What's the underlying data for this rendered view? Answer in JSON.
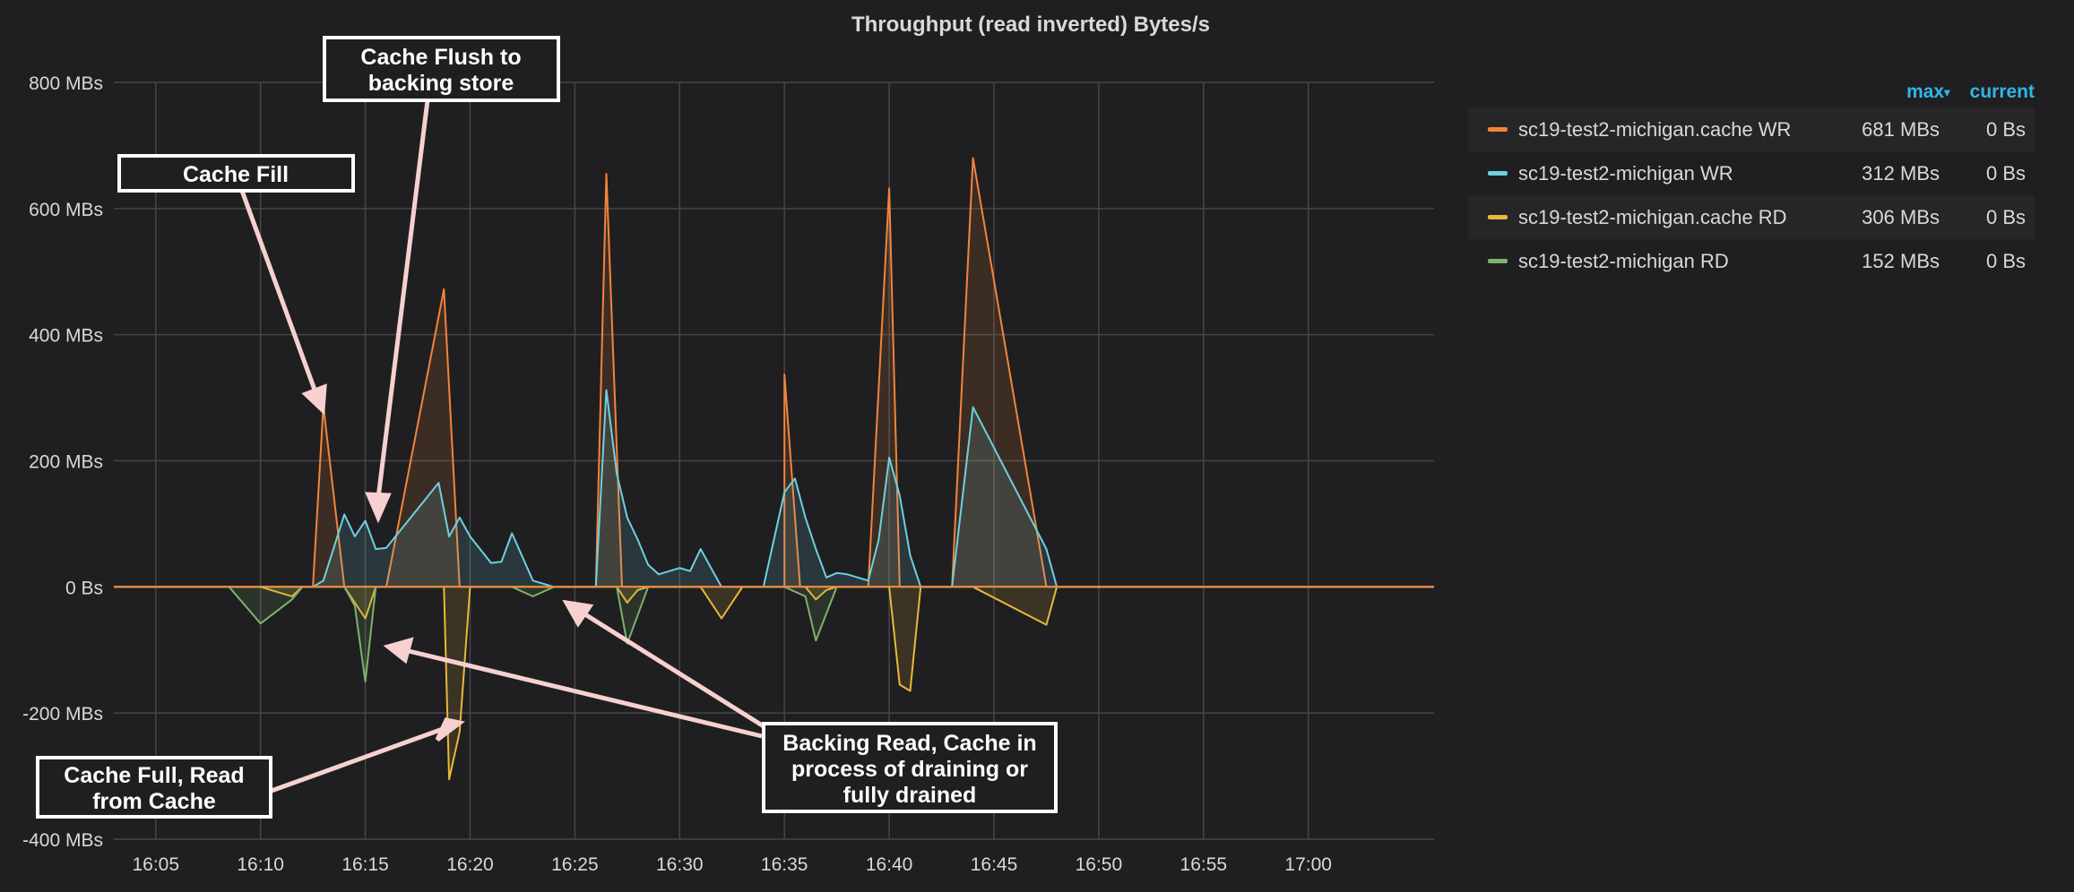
{
  "panel": {
    "title": "Throughput (read inverted) Bytes/s"
  },
  "legend": {
    "max_label": "max",
    "max_sort_icon": "caret-down-icon",
    "current_label": "current",
    "items": [
      {
        "name": "sc19-test2-michigan.cache WR",
        "color": "#f2843c",
        "max": "681 MBs",
        "current": "0 Bs"
      },
      {
        "name": "sc19-test2-michigan WR",
        "color": "#6ed0e0",
        "max": "312 MBs",
        "current": "0 Bs"
      },
      {
        "name": "sc19-test2-michigan.cache RD",
        "color": "#eab839",
        "max": "306 MBs",
        "current": "0 Bs"
      },
      {
        "name": "sc19-test2-michigan RD",
        "color": "#7eb26d",
        "max": "152 MBs",
        "current": "0 Bs"
      }
    ]
  },
  "annotations": [
    {
      "text": [
        "Cache Flush to",
        "backing store"
      ]
    },
    {
      "text": [
        "Cache Fill"
      ]
    },
    {
      "text": [
        "Cache Full, Read",
        "from Cache"
      ]
    },
    {
      "text": [
        "Backing Read, Cache in",
        "process of draining or",
        "fully drained"
      ]
    }
  ],
  "chart_data": {
    "type": "area",
    "title": "Throughput (read inverted) Bytes/s",
    "x_unit": "time (HH:MM)",
    "xlim": [
      "16:03",
      "17:06"
    ],
    "ylim": [
      -400,
      800
    ],
    "y_unit": "MB/s",
    "y_ticks": [
      800,
      600,
      400,
      200,
      0,
      -200,
      -400
    ],
    "y_tick_labels": [
      "800 MBs",
      "600 MBs",
      "400 MBs",
      "200 MBs",
      "0 Bs",
      "-200 MBs",
      "-400 MBs"
    ],
    "x_ticks": [
      "16:05",
      "16:10",
      "16:15",
      "16:20",
      "16:25",
      "16:30",
      "16:35",
      "16:40",
      "16:45",
      "16:50",
      "16:55",
      "17:00"
    ],
    "grid": true,
    "legend_position": "right",
    "series": [
      {
        "name": "sc19-test2-michigan.cache WR",
        "color": "#f2843c",
        "points": [
          [
            "16:03",
            0
          ],
          [
            "16:12:30",
            0
          ],
          [
            "16:13",
            287
          ],
          [
            "16:14:00",
            0
          ],
          [
            "16:16",
            0
          ],
          [
            "16:18:45",
            472
          ],
          [
            "16:19:30",
            0
          ],
          [
            "16:26",
            0
          ],
          [
            "16:26:30",
            655
          ],
          [
            "16:27:15",
            0
          ],
          [
            "16:35",
            0
          ],
          [
            "16:35",
            337
          ],
          [
            "16:35:45",
            0
          ],
          [
            "16:39",
            0
          ],
          [
            "16:40",
            632
          ],
          [
            "16:40:30",
            0
          ],
          [
            "16:43",
            0
          ],
          [
            "16:44",
            680
          ],
          [
            "16:47:30",
            0
          ],
          [
            "17:06",
            0
          ]
        ]
      },
      {
        "name": "sc19-test2-michigan WR",
        "color": "#6ed0e0",
        "points": [
          [
            "16:03",
            0
          ],
          [
            "16:12:30",
            0
          ],
          [
            "16:13",
            10
          ],
          [
            "16:14",
            115
          ],
          [
            "16:14:30",
            80
          ],
          [
            "16:15",
            105
          ],
          [
            "16:15:30",
            60
          ],
          [
            "16:16",
            62
          ],
          [
            "16:18:30",
            165
          ],
          [
            "16:19",
            80
          ],
          [
            "16:19:30",
            110
          ],
          [
            "16:20",
            80
          ],
          [
            "16:21",
            38
          ],
          [
            "16:21:30",
            40
          ],
          [
            "16:22",
            85
          ],
          [
            "16:23",
            10
          ],
          [
            "16:24",
            0
          ],
          [
            "16:26",
            0
          ],
          [
            "16:26:30",
            312
          ],
          [
            "16:27",
            180
          ],
          [
            "16:27:30",
            110
          ],
          [
            "16:28",
            75
          ],
          [
            "16:28:30",
            35
          ],
          [
            "16:29",
            20
          ],
          [
            "16:30",
            30
          ],
          [
            "16:30:30",
            25
          ],
          [
            "16:31",
            60
          ],
          [
            "16:32",
            0
          ],
          [
            "16:34",
            0
          ],
          [
            "16:35",
            150
          ],
          [
            "16:35:30",
            172
          ],
          [
            "16:36",
            110
          ],
          [
            "16:36:30",
            60
          ],
          [
            "16:37",
            15
          ],
          [
            "16:37:30",
            22
          ],
          [
            "16:38",
            20
          ],
          [
            "16:39",
            10
          ],
          [
            "16:39:30",
            75
          ],
          [
            "16:40",
            205
          ],
          [
            "16:40:30",
            145
          ],
          [
            "16:41",
            50
          ],
          [
            "16:41:30",
            0
          ],
          [
            "16:43",
            0
          ],
          [
            "16:44",
            285
          ],
          [
            "16:47:30",
            60
          ],
          [
            "16:48",
            0
          ],
          [
            "17:06",
            0
          ]
        ]
      },
      {
        "name": "sc19-test2-michigan.cache RD",
        "color": "#eab839",
        "points": [
          [
            "16:03",
            0
          ],
          [
            "16:10",
            0
          ],
          [
            "16:11:30",
            -15
          ],
          [
            "16:12",
            0
          ],
          [
            "16:14",
            0
          ],
          [
            "16:15",
            -50
          ],
          [
            "16:15:30",
            0
          ],
          [
            "16:18:45",
            0
          ],
          [
            "16:19",
            -305
          ],
          [
            "16:19:30",
            -230
          ],
          [
            "16:20",
            0
          ],
          [
            "16:27",
            0
          ],
          [
            "16:27:30",
            -25
          ],
          [
            "16:28",
            -5
          ],
          [
            "16:28:30",
            0
          ],
          [
            "16:31",
            0
          ],
          [
            "16:32",
            -50
          ],
          [
            "16:33",
            0
          ],
          [
            "16:36",
            0
          ],
          [
            "16:36:30",
            -20
          ],
          [
            "16:37",
            -5
          ],
          [
            "16:37:30",
            0
          ],
          [
            "16:40",
            0
          ],
          [
            "16:40:30",
            -155
          ],
          [
            "16:41",
            -165
          ],
          [
            "16:41:30",
            0
          ],
          [
            "16:44",
            0
          ],
          [
            "16:47:30",
            -60
          ],
          [
            "16:48",
            0
          ],
          [
            "17:06",
            0
          ]
        ]
      },
      {
        "name": "sc19-test2-michigan RD",
        "color": "#7eb26d",
        "points": [
          [
            "16:03",
            0
          ],
          [
            "16:08:30",
            0
          ],
          [
            "16:10",
            -58
          ],
          [
            "16:11:30",
            -20
          ],
          [
            "16:12",
            0
          ],
          [
            "16:14",
            0
          ],
          [
            "16:14:30",
            -30
          ],
          [
            "16:15",
            -150
          ],
          [
            "16:15:30",
            0
          ],
          [
            "16:22",
            0
          ],
          [
            "16:23",
            -15
          ],
          [
            "16:24",
            0
          ],
          [
            "16:26",
            0
          ],
          [
            "16:27",
            0
          ],
          [
            "16:27:30",
            -90
          ],
          [
            "16:28:30",
            0
          ],
          [
            "16:35",
            0
          ],
          [
            "16:36",
            -15
          ],
          [
            "16:36:30",
            -85
          ],
          [
            "16:37:30",
            0
          ],
          [
            "17:06",
            0
          ]
        ]
      }
    ]
  }
}
